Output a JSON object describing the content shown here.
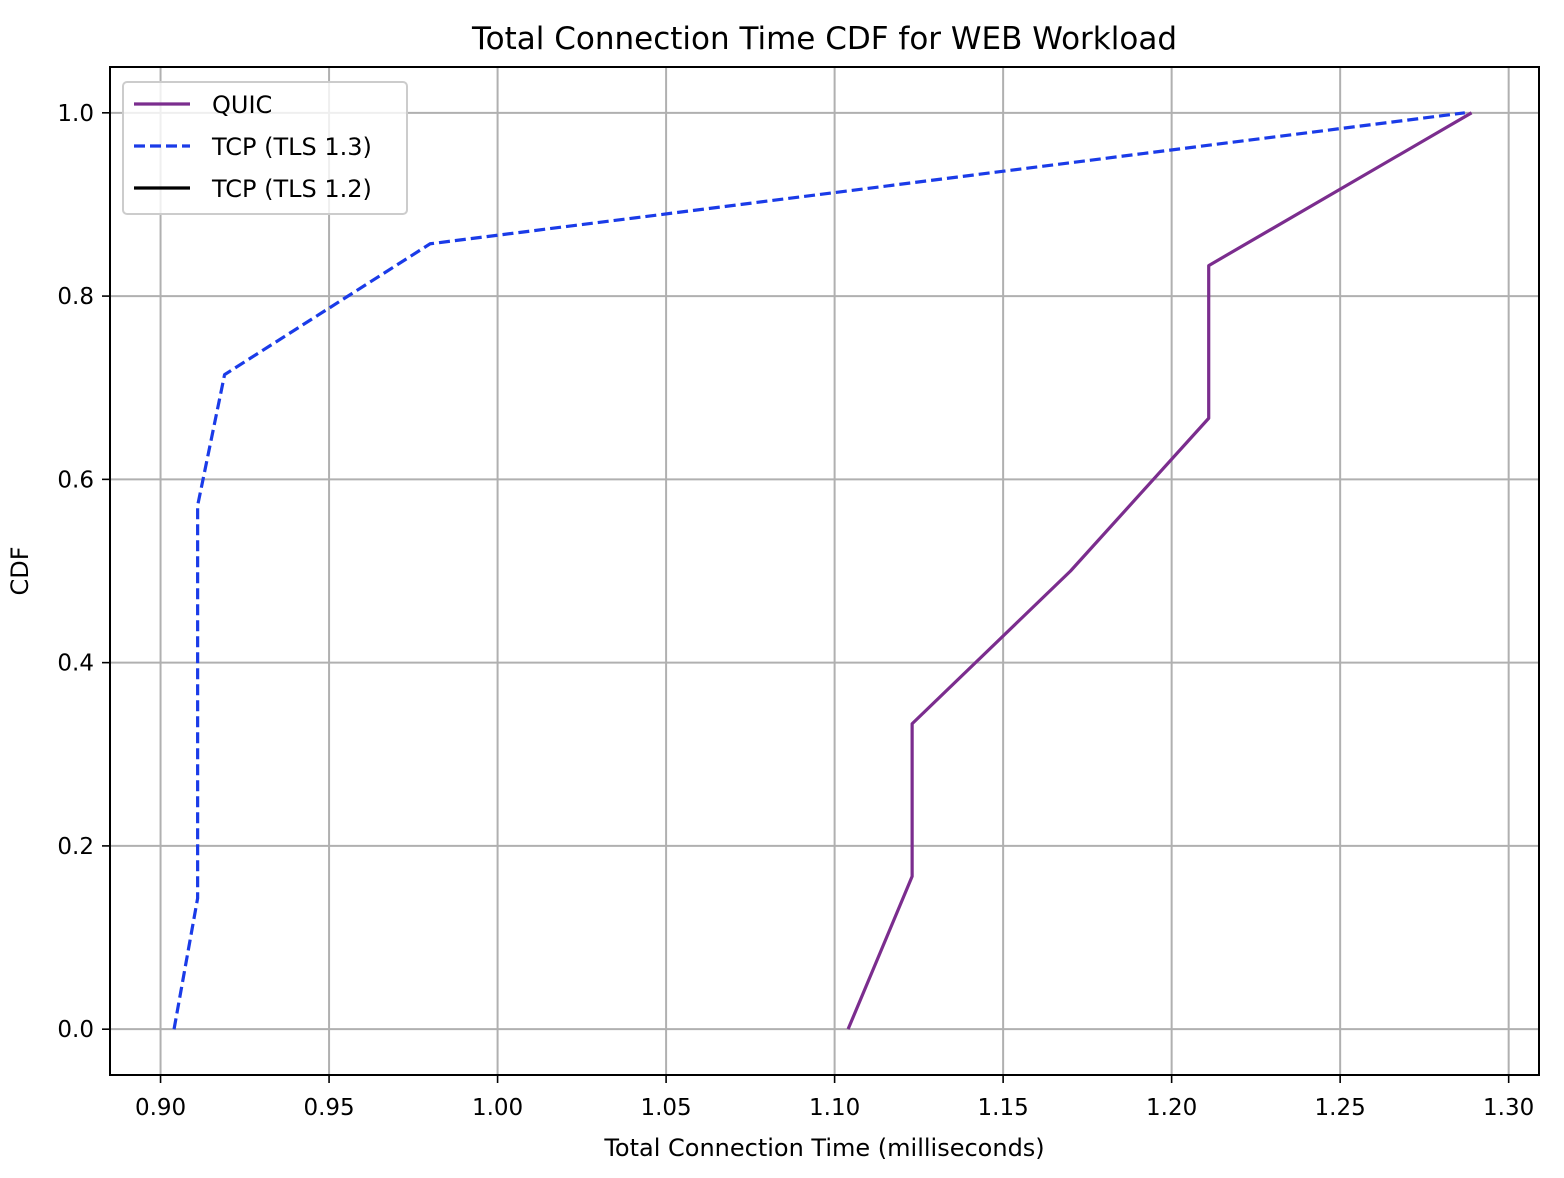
{
  "chart_data": {
    "type": "line",
    "title": "Total Connection Time CDF for WEB Workload",
    "xlabel": "Total Connection Time (milliseconds)",
    "ylabel": "CDF",
    "xlim": [
      0.885,
      1.309
    ],
    "ylim": [
      -0.05,
      1.05
    ],
    "xticks": [
      0.9,
      0.95,
      1.0,
      1.05,
      1.1,
      1.15,
      1.2,
      1.25,
      1.3
    ],
    "xtick_labels": [
      "0.90",
      "0.95",
      "1.00",
      "1.05",
      "1.10",
      "1.15",
      "1.20",
      "1.25",
      "1.30"
    ],
    "yticks": [
      0.0,
      0.2,
      0.4,
      0.6,
      0.8,
      1.0
    ],
    "ytick_labels": [
      "0.0",
      "0.2",
      "0.4",
      "0.6",
      "0.8",
      "1.0"
    ],
    "grid": true,
    "legend_position": "upper-left",
    "series": [
      {
        "name": "QUIC",
        "color": "#7b2d8e",
        "dash": "solid",
        "x": [
          1.104,
          1.123,
          1.123,
          1.17,
          1.211,
          1.211,
          1.289
        ],
        "y": [
          0.0,
          0.1667,
          0.3333,
          0.5,
          0.6667,
          0.8333,
          1.0
        ]
      },
      {
        "name": "TCP (TLS 1.3)",
        "color": "#1a3be8",
        "dash": "dashed",
        "x": [
          0.904,
          0.911,
          0.911,
          0.911,
          0.919,
          0.98,
          1.287
        ],
        "y": [
          0.0,
          0.1429,
          0.2857,
          0.5714,
          0.7143,
          0.8571,
          1.0
        ]
      },
      {
        "name": "TCP (TLS 1.2)",
        "color": "#000000",
        "dash": "solid",
        "x": [],
        "y": []
      }
    ]
  }
}
